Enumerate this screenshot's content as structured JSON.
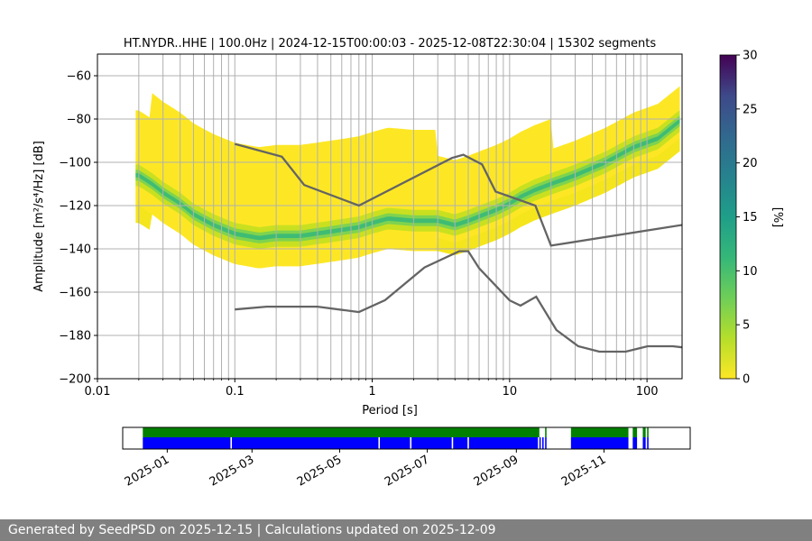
{
  "chart_data": [
    {
      "type": "heatmap",
      "title": "HT.NYDR..HHE | 100.0Hz | 2024-12-15T00:00:03 - 2025-12-08T22:30:04 | 15302 segments",
      "xlabel": "Period [s]",
      "ylabel": "Amplitude [m²/s⁴/Hz] [dB]",
      "x_scale": "log",
      "xlim": [
        0.01,
        180
      ],
      "ylim": [
        -200,
        -50
      ],
      "x_ticks": [
        0.01,
        0.1,
        1,
        10,
        100
      ],
      "x_tick_labels": [
        "0.01",
        "0.1",
        "1",
        "10",
        "100"
      ],
      "y_ticks": [
        -200,
        -180,
        -160,
        -140,
        -120,
        -100,
        -80,
        -60
      ],
      "y_tick_labels": [
        "−200",
        "−180",
        "−160",
        "−140",
        "−120",
        "−100",
        "−80",
        "−60"
      ],
      "grid": true,
      "colormap": "viridis_r",
      "colorbar": {
        "label": "[%]",
        "range": [
          0,
          30
        ],
        "ticks": [
          0,
          5,
          10,
          15,
          20,
          25,
          30
        ],
        "tick_labels": [
          "0",
          "5",
          "10",
          "15",
          "20",
          "25",
          "30"
        ]
      },
      "psd_mode_curve": {
        "period": [
          0.02,
          0.025,
          0.03,
          0.04,
          0.05,
          0.07,
          0.1,
          0.15,
          0.2,
          0.3,
          0.5,
          0.8,
          1,
          1.3,
          2,
          3,
          4,
          5,
          6,
          8,
          10,
          12,
          15,
          20,
          30,
          50,
          80,
          120,
          180
        ],
        "db": [
          -106,
          -110,
          -114,
          -119,
          -124,
          -129,
          -133,
          -135,
          -134,
          -134,
          -132,
          -130,
          -128,
          -126,
          -127,
          -127,
          -129,
          -127,
          -125,
          -122,
          -119,
          -116,
          -113,
          -110,
          -106,
          -100,
          -93,
          -89,
          -80
        ]
      },
      "peterson_high_noise_model": {
        "period": [
          0.1,
          0.22,
          0.32,
          0.8,
          3.8,
          4.6,
          6.3,
          7.9,
          15.4,
          20,
          354.8
        ],
        "db": [
          -91.5,
          -97.4,
          -110.5,
          -120,
          -98,
          -96.5,
          -101,
          -113.5,
          -120,
          -138.5,
          -126
        ]
      },
      "peterson_low_noise_model": {
        "period": [
          0.1,
          0.17,
          0.4,
          0.8,
          1.24,
          2.4,
          4.3,
          5,
          6,
          10,
          12,
          15.6,
          21.9,
          31.6,
          45,
          70,
          101,
          154,
          180
        ],
        "db": [
          -168,
          -166.7,
          -166.7,
          -169.2,
          -163.7,
          -148.6,
          -141.1,
          -141.1,
          -149,
          -163.8,
          -166.2,
          -162.1,
          -177.5,
          -185,
          -187.5,
          -187.5,
          -185,
          -185,
          -185.5
        ]
      }
    },
    {
      "type": "timeline",
      "x_tick_labels": [
        "2025-01",
        "2025-03",
        "2025-05",
        "2025-07",
        "2025-09",
        "2025-11"
      ],
      "range": [
        "2024-12-01",
        "2025-12-31"
      ],
      "data_availability": [
        [
          "2024-12-15",
          "2025-09-17"
        ],
        [
          "2025-09-21",
          "2025-09-22"
        ],
        [
          "2025-10-09",
          "2025-11-18"
        ],
        [
          "2025-11-21",
          "2025-11-24"
        ],
        [
          "2025-11-28",
          "2025-11-30"
        ],
        [
          "2025-12-01",
          "2025-12-02"
        ]
      ],
      "psd_coverage": [
        [
          "2024-12-15",
          "2025-02-14"
        ],
        [
          "2025-02-15",
          "2025-05-28"
        ],
        [
          "2025-05-29",
          "2025-06-19"
        ],
        [
          "2025-06-20",
          "2025-07-18"
        ],
        [
          "2025-07-19",
          "2025-07-29"
        ],
        [
          "2025-07-30",
          "2025-09-16"
        ],
        [
          "2025-09-17",
          "2025-09-18"
        ],
        [
          "2025-09-19",
          "2025-09-20"
        ],
        [
          "2025-09-21",
          "2025-09-22"
        ],
        [
          "2025-10-09",
          "2025-11-18"
        ],
        [
          "2025-11-21",
          "2025-11-24"
        ],
        [
          "2025-11-28",
          "2025-11-30"
        ],
        [
          "2025-12-01",
          "2025-12-02"
        ]
      ],
      "availability_color": "#008000",
      "psd_color": "#0000ff"
    }
  ],
  "footer": {
    "text": "Generated by SeedPSD on 2025-12-15 | Calculations updated on 2025-12-09",
    "background": "#808080"
  }
}
